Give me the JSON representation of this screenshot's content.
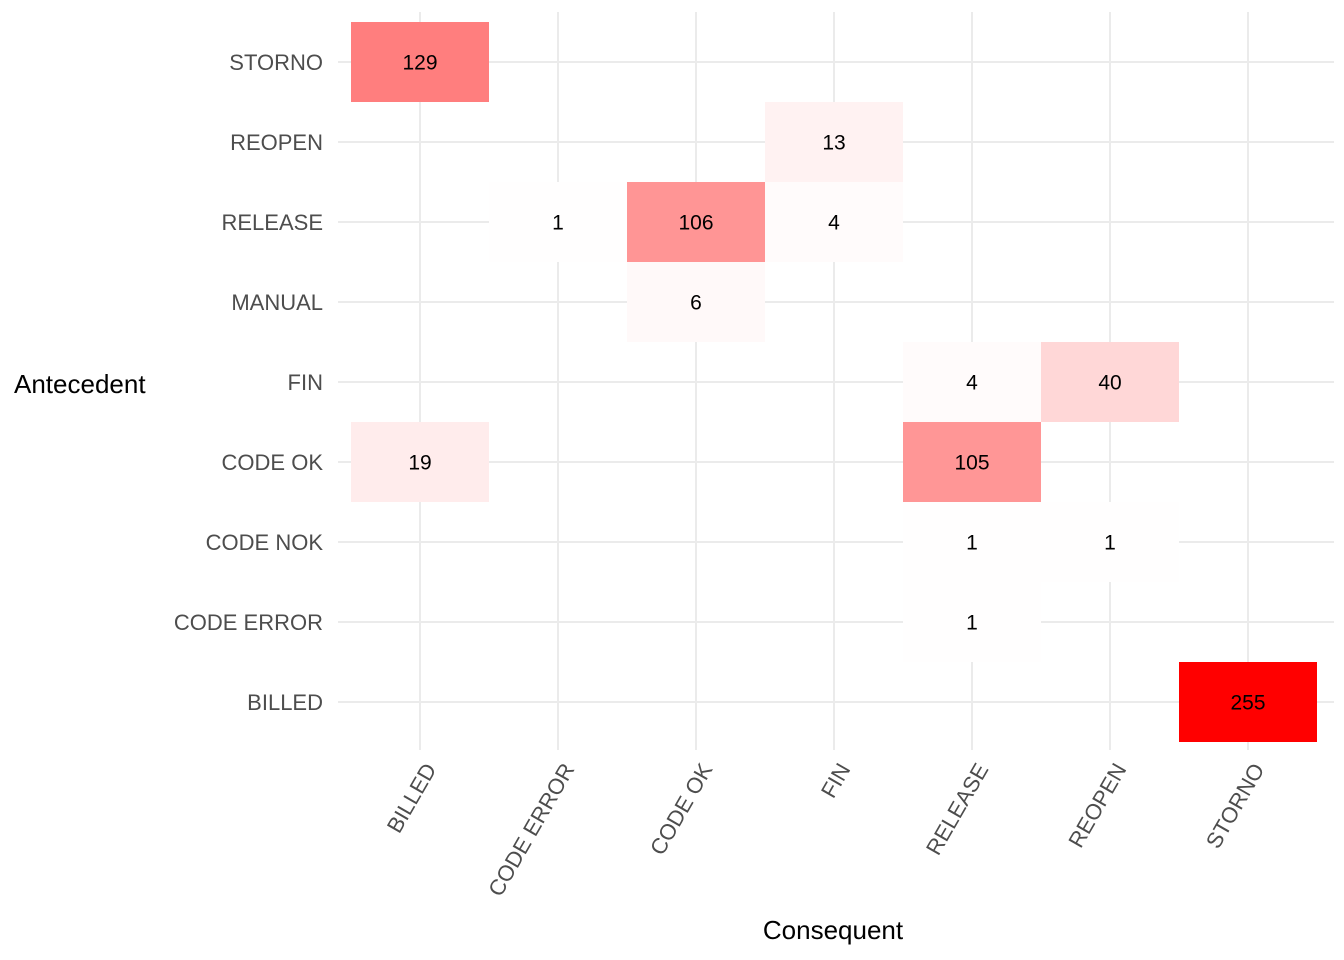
{
  "chart_data": {
    "type": "heatmap",
    "xlabel": "Consequent",
    "ylabel": "Antecedent",
    "x_categories": [
      "BILLED",
      "CODE ERROR",
      "CODE OK",
      "FIN",
      "RELEASE",
      "REOPEN",
      "STORNO"
    ],
    "y_categories": [
      "BILLED",
      "CODE ERROR",
      "CODE NOK",
      "CODE OK",
      "FIN",
      "MANUAL",
      "RELEASE",
      "REOPEN",
      "STORNO"
    ],
    "cells": [
      {
        "x": "BILLED",
        "y": "STORNO",
        "value": 129
      },
      {
        "x": "FIN",
        "y": "REOPEN",
        "value": 13
      },
      {
        "x": "CODE ERROR",
        "y": "RELEASE",
        "value": 1
      },
      {
        "x": "CODE OK",
        "y": "RELEASE",
        "value": 106
      },
      {
        "x": "FIN",
        "y": "RELEASE",
        "value": 4
      },
      {
        "x": "CODE OK",
        "y": "MANUAL",
        "value": 6
      },
      {
        "x": "RELEASE",
        "y": "FIN",
        "value": 4
      },
      {
        "x": "REOPEN",
        "y": "FIN",
        "value": 40
      },
      {
        "x": "BILLED",
        "y": "CODE OK",
        "value": 19
      },
      {
        "x": "RELEASE",
        "y": "CODE OK",
        "value": 105
      },
      {
        "x": "RELEASE",
        "y": "CODE NOK",
        "value": 1
      },
      {
        "x": "REOPEN",
        "y": "CODE NOK",
        "value": 1
      },
      {
        "x": "RELEASE",
        "y": "CODE ERROR",
        "value": 1
      },
      {
        "x": "STORNO",
        "y": "BILLED",
        "value": 255
      }
    ],
    "fill_scale": {
      "low": "#ffffff",
      "high": "#ff0000",
      "min": 0,
      "max": 255
    },
    "x_tick_rotation_deg": -60,
    "grid": true,
    "legend": "none"
  }
}
